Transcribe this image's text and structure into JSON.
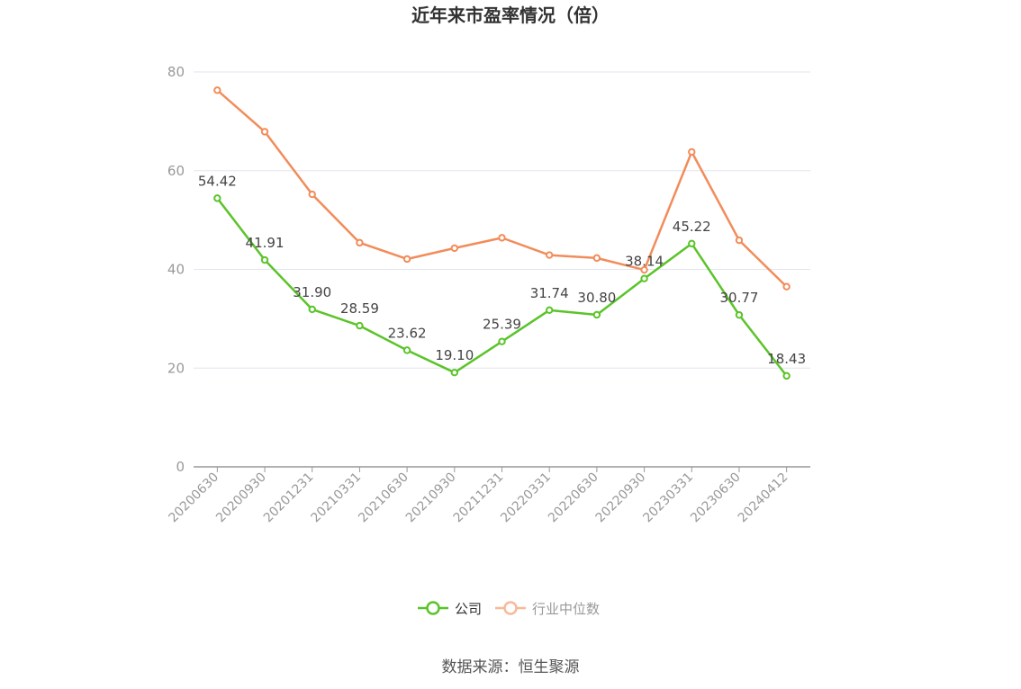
{
  "chart_data": {
    "type": "line",
    "title": "近年来市盈率情况（倍）",
    "categories": [
      "20200630",
      "20200930",
      "20201231",
      "20210331",
      "20210630",
      "20210930",
      "20211231",
      "20220331",
      "20220630",
      "20220930",
      "20230331",
      "20230630",
      "20240412"
    ],
    "ylim": [
      0,
      80
    ],
    "yticks": [
      0,
      20,
      40,
      60,
      80
    ],
    "grid": true,
    "legend_position": "bottom-center",
    "series": [
      {
        "name": "公司",
        "color": "#5ac429",
        "values": [
          54.42,
          41.91,
          31.9,
          28.59,
          23.62,
          19.1,
          25.39,
          31.74,
          30.8,
          38.14,
          45.22,
          30.77,
          18.43
        ],
        "labels": [
          "54.42",
          "41.91",
          "31.90",
          "28.59",
          "23.62",
          "19.10",
          "25.39",
          "31.74",
          "30.80",
          "38.14",
          "45.22",
          "30.77",
          "18.43"
        ]
      },
      {
        "name": "行业中位数",
        "color": "#f28c5a",
        "values": [
          76.3,
          67.9,
          55.2,
          45.4,
          42.1,
          44.3,
          46.4,
          42.9,
          42.3,
          39.9,
          63.8,
          45.9,
          36.5
        ]
      }
    ],
    "source": "数据来源：恒生聚源"
  }
}
